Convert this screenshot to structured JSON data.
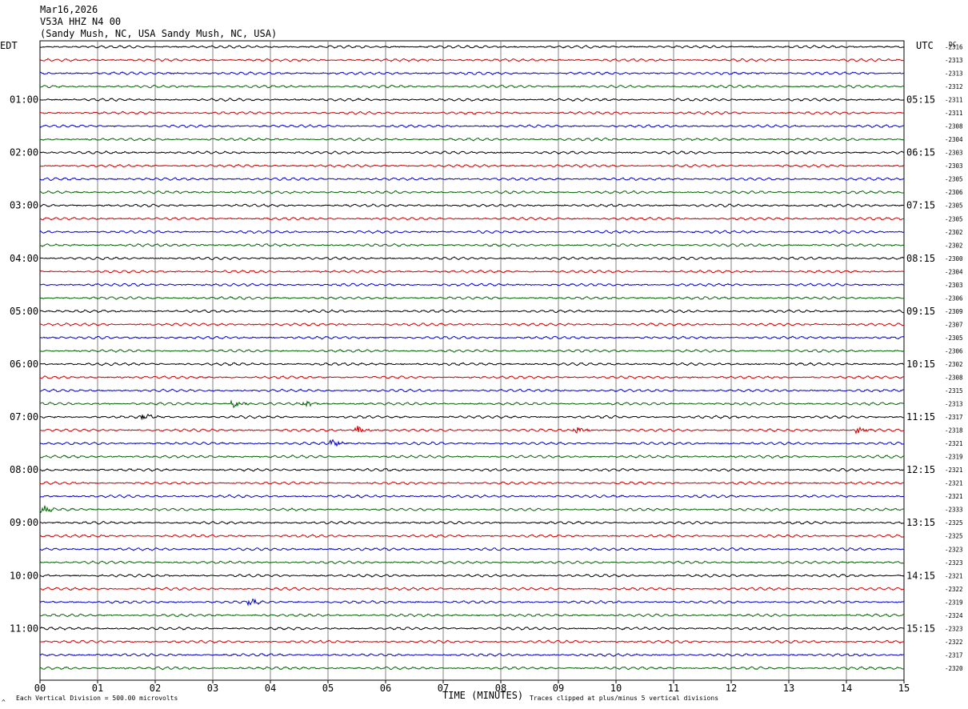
{
  "header": {
    "date": "Mar16,2026",
    "station": "V53A HHZ N4 00",
    "location": "(Sandy Mush, NC, USA Sandy Mush, NC, USA)"
  },
  "left_tz": "EDT",
  "right_tz": "UTC",
  "dc_label": "DC",
  "footer": {
    "scale_marker": "^",
    "division_note": "Each Vertical Division =  500.00 microvolts",
    "time_label": "TIME (MINUTES)",
    "clip_note": "Traces clipped at plus/minus 5 vertical divisions"
  },
  "colors": {
    "black": "#000000",
    "red": "#cc0000",
    "blue": "#0000cc",
    "green": "#006600",
    "grid": "#808080"
  },
  "chart_data": {
    "type": "line",
    "description_of_axes": "helicorder",
    "xlabel": "TIME (MINUTES)",
    "x_ticks": [
      "00",
      "01",
      "02",
      "03",
      "04",
      "05",
      "06",
      "07",
      "08",
      "09",
      "10",
      "11",
      "12",
      "13",
      "14",
      "15"
    ],
    "xlim": [
      0,
      15
    ],
    "trace_colors": [
      "black",
      "red",
      "blue",
      "green"
    ],
    "edt_labels": [
      "01:00",
      "02:00",
      "03:00",
      "04:00",
      "05:00",
      "06:00",
      "07:00",
      "08:00",
      "09:00",
      "10:00",
      "11:00"
    ],
    "utc_labels": [
      "05:15",
      "06:15",
      "07:15",
      "08:15",
      "09:15",
      "10:15",
      "11:15",
      "12:15",
      "13:15",
      "14:15",
      "15:15"
    ],
    "dc_values": [
      "-2316",
      "-2313",
      "-2313",
      "-2312",
      "-2311",
      "-2311",
      "-2308",
      "-2304",
      "-2303",
      "-2303",
      "-2305",
      "-2306",
      "-2305",
      "-2305",
      "-2302",
      "-2302",
      "-2300",
      "-2304",
      "-2303",
      "-2306",
      "-2309",
      "-2307",
      "-2305",
      "-2306",
      "-2302",
      "-2308",
      "-2315",
      "-2313",
      "-2317",
      "-2318",
      "-2321",
      "-2319",
      "-2321",
      "-2321",
      "-2321",
      "-2333",
      "-2325",
      "-2325",
      "-2323",
      "-2323",
      "-2321",
      "-2322",
      "-2319",
      "-2324",
      "-2323",
      "-2322",
      "-2317",
      "-2320"
    ],
    "events": [
      {
        "row": 28,
        "minute": 1.8
      },
      {
        "row": 27,
        "minute": 3.35
      },
      {
        "row": 27,
        "minute": 4.6
      },
      {
        "row": 29,
        "minute": 5.5
      },
      {
        "row": 29,
        "minute": 9.3
      },
      {
        "row": 29,
        "minute": 14.2
      },
      {
        "row": 30,
        "minute": 5.05
      },
      {
        "row": 42,
        "minute": 3.65
      },
      {
        "row": 35,
        "minute": 0.05
      }
    ]
  }
}
